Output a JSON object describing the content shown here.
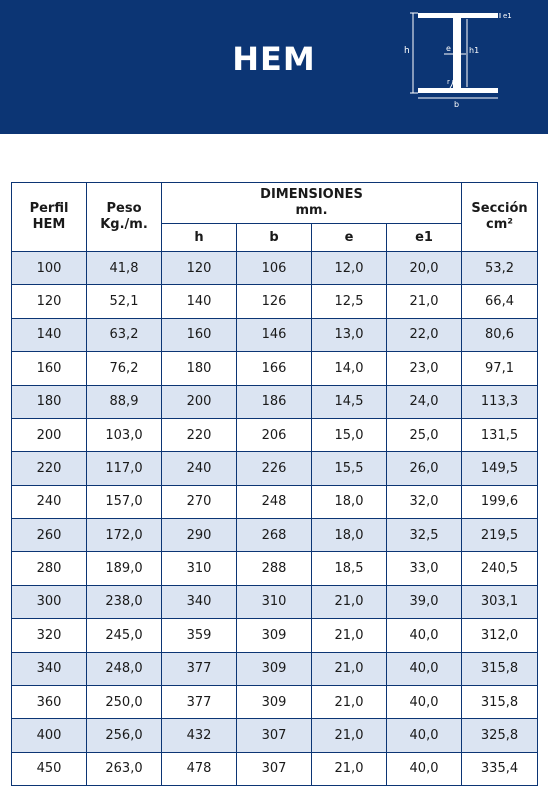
{
  "title": "HEM",
  "diagram": {
    "labels": {
      "e1": "e1",
      "h": "h",
      "h1": "h1",
      "e": "e",
      "r": "r",
      "b": "b"
    }
  },
  "table": {
    "headers": {
      "perfil": "Perfil\nHEM",
      "peso": "Peso\nKg./m.",
      "dimensiones": "DIMENSIONES\nmm.",
      "h": "h",
      "b": "b",
      "e": "e",
      "e1": "e1",
      "seccion": "Sección\ncm²"
    },
    "rows": [
      [
        "100",
        "41,8",
        "120",
        "106",
        "12,0",
        "20,0",
        "53,2"
      ],
      [
        "120",
        "52,1",
        "140",
        "126",
        "12,5",
        "21,0",
        "66,4"
      ],
      [
        "140",
        "63,2",
        "160",
        "146",
        "13,0",
        "22,0",
        "80,6"
      ],
      [
        "160",
        "76,2",
        "180",
        "166",
        "14,0",
        "23,0",
        "97,1"
      ],
      [
        "180",
        "88,9",
        "200",
        "186",
        "14,5",
        "24,0",
        "113,3"
      ],
      [
        "200",
        "103,0",
        "220",
        "206",
        "15,0",
        "25,0",
        "131,5"
      ],
      [
        "220",
        "117,0",
        "240",
        "226",
        "15,5",
        "26,0",
        "149,5"
      ],
      [
        "240",
        "157,0",
        "270",
        "248",
        "18,0",
        "32,0",
        "199,6"
      ],
      [
        "260",
        "172,0",
        "290",
        "268",
        "18,0",
        "32,5",
        "219,5"
      ],
      [
        "280",
        "189,0",
        "310",
        "288",
        "18,5",
        "33,0",
        "240,5"
      ],
      [
        "300",
        "238,0",
        "340",
        "310",
        "21,0",
        "39,0",
        "303,1"
      ],
      [
        "320",
        "245,0",
        "359",
        "309",
        "21,0",
        "40,0",
        "312,0"
      ],
      [
        "340",
        "248,0",
        "377",
        "309",
        "21,0",
        "40,0",
        "315,8"
      ],
      [
        "360",
        "250,0",
        "377",
        "309",
        "21,0",
        "40,0",
        "315,8"
      ],
      [
        "400",
        "256,0",
        "432",
        "307",
        "21,0",
        "40,0",
        "325,8"
      ],
      [
        "450",
        "263,0",
        "478",
        "307",
        "21,0",
        "40,0",
        "335,4"
      ]
    ]
  }
}
